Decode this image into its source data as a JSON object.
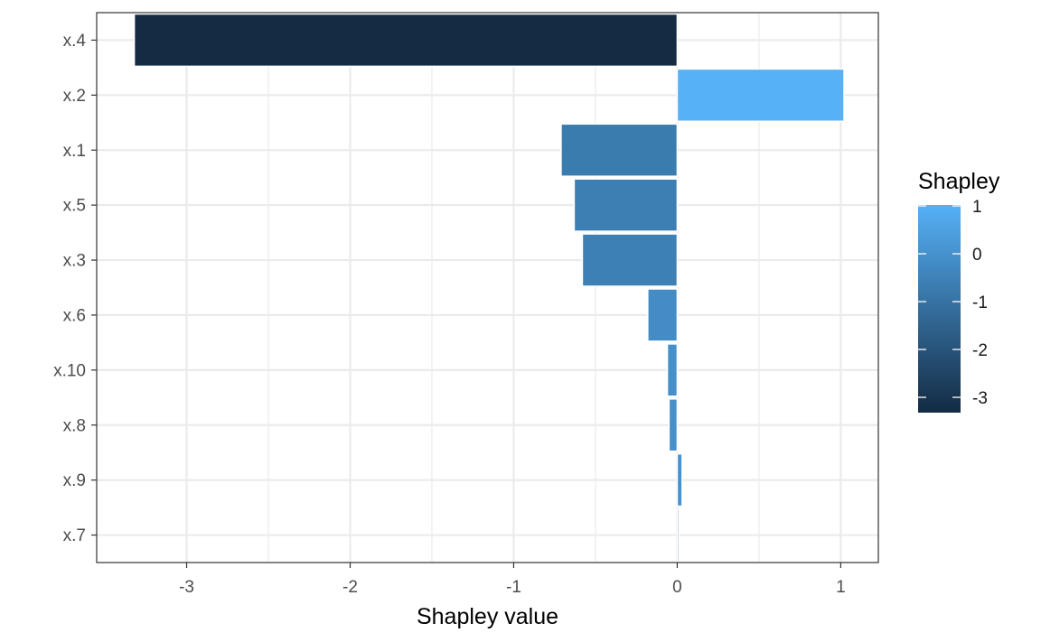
{
  "chart_data": {
    "type": "bar",
    "orientation": "horizontal",
    "categories": [
      "x.4",
      "x.2",
      "x.1",
      "x.5",
      "x.3",
      "x.6",
      "x.10",
      "x.8",
      "x.9",
      "x.7"
    ],
    "values": [
      -3.32,
      1.02,
      -0.71,
      -0.63,
      -0.58,
      -0.18,
      -0.06,
      -0.05,
      0.03,
      0.01
    ],
    "xlabel": "Shapley value",
    "ylabel": "",
    "xlim": [
      -3.55,
      1.23
    ],
    "x_ticks": [
      -3,
      -2,
      -1,
      0,
      1
    ],
    "x_tick_labels": [
      "-3",
      "-2",
      "-1",
      "0",
      "1"
    ],
    "grid": true,
    "legend": {
      "title": "Shapley",
      "type": "colorbar",
      "placement": "right",
      "range": [
        -3.32,
        1.02
      ],
      "ticks": [
        1,
        0,
        -1,
        -2,
        -3
      ],
      "tick_labels": [
        "1",
        "0",
        "-1",
        "-2",
        "-3"
      ],
      "low_color": "#132B43",
      "high_color": "#56B1F7"
    }
  }
}
